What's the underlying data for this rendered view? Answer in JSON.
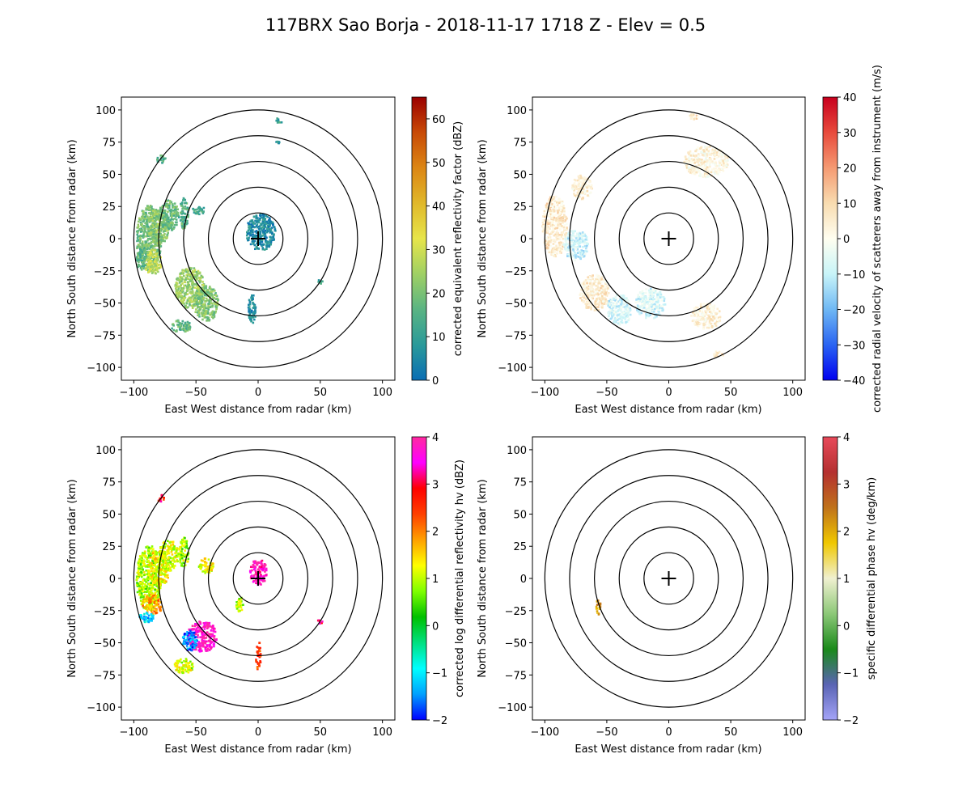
{
  "figure": {
    "title": "117BRX Sao Borja - 2018-11-17 1718 Z -  Elev = 0.5"
  },
  "chart_data": [
    {
      "type": "heatmap",
      "panel": "top-left",
      "xlabel": "East West distance from radar (km)",
      "ylabel": "North South distance from radar (km)",
      "xlim": [
        -110,
        110
      ],
      "ylim": [
        -110,
        110
      ],
      "xticks": [
        -100,
        -50,
        0,
        50,
        100
      ],
      "yticks": [
        -100,
        -75,
        -50,
        -25,
        0,
        25,
        50,
        75,
        100
      ],
      "range_rings_km": [
        20,
        40,
        60,
        80,
        100
      ],
      "colorbar": {
        "label": "corrected equivalent reflectivity factor (dBZ)",
        "vmin": 0,
        "vmax": 65,
        "ticks": [
          0,
          10,
          20,
          30,
          40,
          50,
          60
        ],
        "colors": [
          "#0a6eb4",
          "#2a9a9a",
          "#5ab483",
          "#9fd064",
          "#e7e54a",
          "#e0b82a",
          "#dc8614",
          "#c84a06",
          "#9b0000"
        ]
      },
      "echoes": [
        {
          "x": -88,
          "y": 0,
          "rx": 10,
          "ry": 26,
          "v": 19
        },
        {
          "x": -80,
          "y": 10,
          "rx": 9,
          "ry": 14,
          "v": 22
        },
        {
          "x": -85,
          "y": -18,
          "rx": 7,
          "ry": 10,
          "v": 28
        },
        {
          "x": -94,
          "y": -15,
          "rx": 4,
          "ry": 10,
          "v": 16
        },
        {
          "x": -72,
          "y": 18,
          "rx": 8,
          "ry": 12,
          "v": 18
        },
        {
          "x": -60,
          "y": 20,
          "rx": 4,
          "ry": 12,
          "v": 15
        },
        {
          "x": -55,
          "y": -38,
          "rx": 12,
          "ry": 16,
          "v": 24
        },
        {
          "x": -42,
          "y": -50,
          "rx": 10,
          "ry": 14,
          "v": 21
        },
        {
          "x": -62,
          "y": -68,
          "rx": 8,
          "ry": 5,
          "v": 17
        },
        {
          "x": -78,
          "y": 62,
          "rx": 4,
          "ry": 3,
          "v": 14
        },
        {
          "x": -48,
          "y": 22,
          "rx": 6,
          "ry": 3,
          "v": 14
        },
        {
          "x": 2,
          "y": 5,
          "rx": 12,
          "ry": 14,
          "v": 6
        },
        {
          "x": -5,
          "y": -55,
          "rx": 3,
          "ry": 12,
          "v": 6
        },
        {
          "x": 50,
          "y": -33,
          "rx": 2,
          "ry": 2,
          "v": 12
        },
        {
          "x": 16,
          "y": 75,
          "rx": 2,
          "ry": 1,
          "v": 10
        },
        {
          "x": 17,
          "y": 92,
          "rx": 3,
          "ry": 2,
          "v": 12
        }
      ]
    },
    {
      "type": "heatmap",
      "panel": "top-right",
      "xlabel": "East West distance from radar (km)",
      "ylabel": "North South distance from radar (km)",
      "xlim": [
        -110,
        110
      ],
      "ylim": [
        -110,
        110
      ],
      "xticks": [
        -100,
        -50,
        0,
        50,
        100
      ],
      "yticks": [
        -100,
        -75,
        -50,
        -25,
        0,
        25,
        50,
        75,
        100
      ],
      "range_rings_km": [
        20,
        40,
        60,
        80,
        100
      ],
      "colorbar": {
        "label": "corrected radial velocity of scatterers away from instrument (m/s)",
        "vmin": -40,
        "vmax": 40,
        "ticks": [
          -40,
          -30,
          -20,
          -10,
          0,
          10,
          20,
          30,
          40
        ],
        "colors": [
          "#0000f0",
          "#2a64f2",
          "#6fb8f4",
          "#c8f4f8",
          "#fffef0",
          "#f8dcb0",
          "#f59a72",
          "#e84a3c",
          "#c8001e"
        ]
      },
      "echoes": [
        {
          "x": -92,
          "y": 10,
          "rx": 10,
          "ry": 24,
          "v": 6
        },
        {
          "x": -75,
          "y": -5,
          "rx": 10,
          "ry": 12,
          "v": -9
        },
        {
          "x": -60,
          "y": -42,
          "rx": 12,
          "ry": 14,
          "v": 5
        },
        {
          "x": -40,
          "y": -55,
          "rx": 10,
          "ry": 12,
          "v": -8
        },
        {
          "x": -15,
          "y": -50,
          "rx": 12,
          "ry": 12,
          "v": -7
        },
        {
          "x": 30,
          "y": -60,
          "rx": 12,
          "ry": 10,
          "v": 4
        },
        {
          "x": 30,
          "y": 60,
          "rx": 18,
          "ry": 12,
          "v": 3
        },
        {
          "x": -70,
          "y": 40,
          "rx": 8,
          "ry": 10,
          "v": 4
        },
        {
          "x": 40,
          "y": -90,
          "rx": 4,
          "ry": 3,
          "v": 6
        },
        {
          "x": 20,
          "y": 95,
          "rx": 4,
          "ry": 3,
          "v": 6
        }
      ]
    },
    {
      "type": "heatmap",
      "panel": "bottom-left",
      "xlabel": "East West distance from radar (km)",
      "ylabel": "North South distance from radar (km)",
      "xlim": [
        -110,
        110
      ],
      "ylim": [
        -110,
        110
      ],
      "xticks": [
        -100,
        -50,
        0,
        50,
        100
      ],
      "yticks": [
        -100,
        -75,
        -50,
        -25,
        0,
        25,
        50,
        75,
        100
      ],
      "range_rings_km": [
        20,
        40,
        60,
        80,
        100
      ],
      "colorbar": {
        "label": "corrected log differential reflectivity hv (dBZ)",
        "vmin": -2,
        "vmax": 4,
        "ticks": [
          -2,
          -1,
          0,
          1,
          2,
          3,
          4
        ],
        "colors": [
          "#0000ff",
          "#00a0ff",
          "#00ffff",
          "#00e080",
          "#00c000",
          "#7fff00",
          "#ffff00",
          "#ffa000",
          "#ff4000",
          "#ff0000",
          "#ff00ff",
          "#ff2aa0"
        ]
      },
      "echoes": [
        {
          "x": -88,
          "y": 0,
          "rx": 10,
          "ry": 26,
          "v": 0.9
        },
        {
          "x": -80,
          "y": 8,
          "rx": 9,
          "ry": 14,
          "v": 1.3
        },
        {
          "x": -85,
          "y": -20,
          "rx": 8,
          "ry": 8,
          "v": 1.8
        },
        {
          "x": -90,
          "y": -30,
          "rx": 6,
          "ry": 4,
          "v": -1.2
        },
        {
          "x": -72,
          "y": 18,
          "rx": 8,
          "ry": 12,
          "v": 1.1
        },
        {
          "x": -60,
          "y": 20,
          "rx": 4,
          "ry": 12,
          "v": 0.9
        },
        {
          "x": -45,
          "y": -45,
          "rx": 12,
          "ry": 12,
          "v": 3.8
        },
        {
          "x": -55,
          "y": -48,
          "rx": 6,
          "ry": 8,
          "v": -1.5
        },
        {
          "x": -60,
          "y": -68,
          "rx": 8,
          "ry": 6,
          "v": 1.1
        },
        {
          "x": -42,
          "y": 10,
          "rx": 6,
          "ry": 6,
          "v": 1.2
        },
        {
          "x": 0,
          "y": 5,
          "rx": 7,
          "ry": 10,
          "v": 3.6
        },
        {
          "x": 0,
          "y": -60,
          "rx": 2,
          "ry": 12,
          "v": 2.5
        },
        {
          "x": -15,
          "y": -20,
          "rx": 3,
          "ry": 6,
          "v": 1.0
        },
        {
          "x": 50,
          "y": -33,
          "rx": 2,
          "ry": 2,
          "v": 3.2
        },
        {
          "x": -78,
          "y": 62,
          "rx": 3,
          "ry": 3,
          "v": 2.8
        }
      ]
    },
    {
      "type": "heatmap",
      "panel": "bottom-right",
      "xlabel": "East West distance from radar (km)",
      "ylabel": "North South distance from radar (km)",
      "xlim": [
        -110,
        110
      ],
      "ylim": [
        -110,
        110
      ],
      "xticks": [
        -100,
        -50,
        0,
        50,
        100
      ],
      "yticks": [
        -100,
        -75,
        -50,
        -25,
        0,
        25,
        50,
        75,
        100
      ],
      "range_rings_km": [
        20,
        40,
        60,
        80,
        100
      ],
      "colorbar": {
        "label": "specific differential phase hv (deg/km)",
        "vmin": -2,
        "vmax": 4,
        "ticks": [
          -2,
          -1,
          0,
          1,
          2,
          3,
          4
        ],
        "colors": [
          "#a4a4f8",
          "#5a64b4",
          "#1a8a1a",
          "#8cc878",
          "#f0f0d0",
          "#f0c800",
          "#c0721a",
          "#b43030",
          "#e84a5a"
        ]
      },
      "echoes": [
        {
          "x": -57,
          "y": -22,
          "rx": 2,
          "ry": 6,
          "v": 2.1
        }
      ]
    }
  ]
}
